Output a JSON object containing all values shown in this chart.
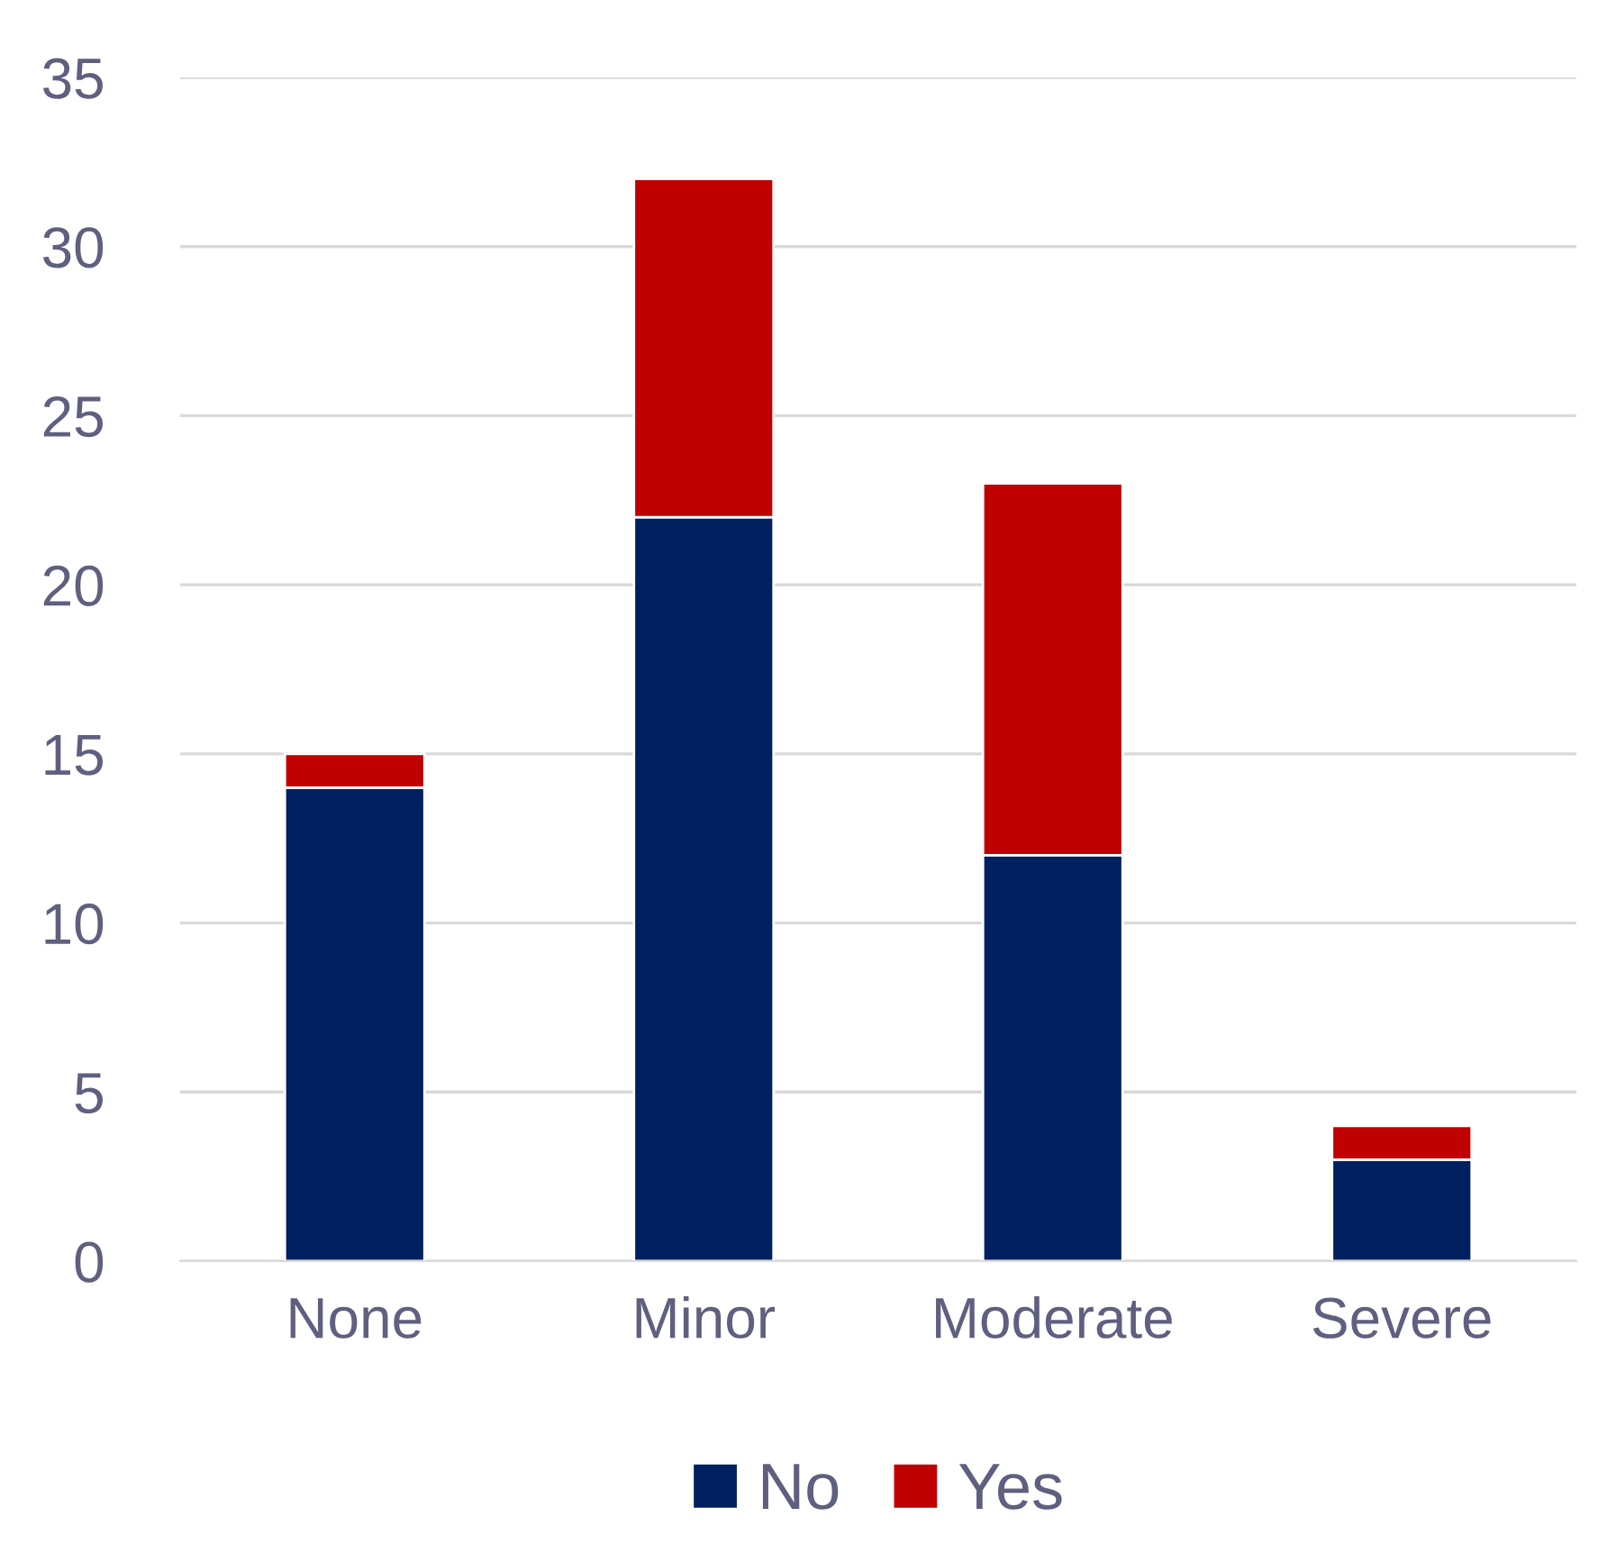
{
  "chart_data": {
    "type": "bar",
    "stacked": true,
    "categories": [
      "None",
      "Minor",
      "Moderate",
      "Severe"
    ],
    "series": [
      {
        "name": "No",
        "color": "#002060",
        "values": [
          14,
          22,
          12,
          3
        ]
      },
      {
        "name": "Yes",
        "color": "#c00000",
        "values": [
          1,
          10,
          11,
          1
        ]
      }
    ],
    "ylim": [
      0,
      35
    ],
    "yticks": [
      0,
      5,
      10,
      15,
      20,
      25,
      30,
      35
    ],
    "grid": "y",
    "legend": "bottom"
  }
}
